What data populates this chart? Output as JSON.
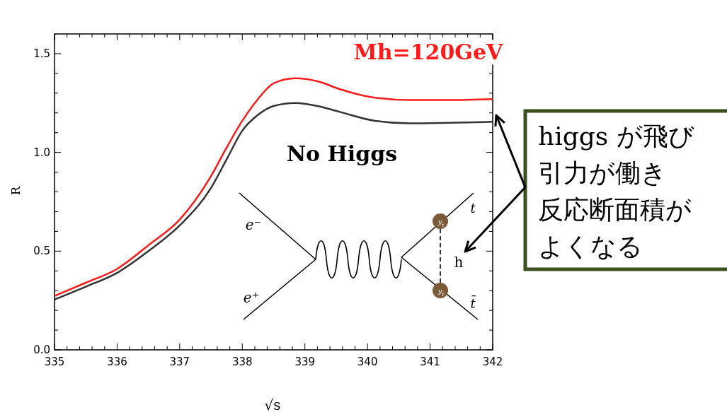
{
  "chart_data": {
    "type": "line",
    "xlabel": "√s",
    "ylabel": "R",
    "xlim": [
      335,
      342
    ],
    "ylim": [
      0,
      1.6
    ],
    "xticks": [
      335,
      {
        "value": 335.2,
        "label": null
      },
      {
        "value": 335.4,
        "label": null
      },
      {
        "value": 335.6,
        "label": null
      },
      {
        "value": 335.8,
        "label": null
      },
      336,
      {
        "value": 336.2,
        "label": null
      },
      {
        "value": 336.4,
        "label": null
      },
      {
        "value": 336.6,
        "label": null
      },
      {
        "value": 336.8,
        "label": null
      },
      337,
      {
        "value": 337.2,
        "label": null
      },
      {
        "value": 337.4,
        "label": null
      },
      {
        "value": 337.6,
        "label": null
      },
      {
        "value": 337.8,
        "label": null
      },
      338,
      {
        "value": 338.2,
        "label": null
      },
      {
        "value": 338.4,
        "label": null
      },
      {
        "value": 338.6,
        "label": null
      },
      {
        "value": 338.8,
        "label": null
      },
      339,
      {
        "value": 339.2,
        "label": null
      },
      {
        "value": 339.4,
        "label": null
      },
      {
        "value": 339.6,
        "label": null
      },
      {
        "value": 339.8,
        "label": null
      },
      340,
      {
        "value": 340.2,
        "label": null
      },
      {
        "value": 340.4,
        "label": null
      },
      {
        "value": 340.6,
        "label": null
      },
      {
        "value": 340.8,
        "label": null
      },
      341,
      {
        "value": 341.2,
        "label": null
      },
      {
        "value": 341.4,
        "label": null
      },
      {
        "value": 341.6,
        "label": null
      },
      {
        "value": 341.8,
        "label": null
      },
      342
    ],
    "yticks": [
      {
        "value": 0,
        "label": "0.0"
      },
      {
        "value": 0.1,
        "label": null
      },
      {
        "value": 0.2,
        "label": null
      },
      {
        "value": 0.3,
        "label": null
      },
      {
        "value": 0.4,
        "label": null
      },
      {
        "value": 0.5,
        "label": "0.5"
      },
      {
        "value": 0.6,
        "label": null
      },
      {
        "value": 0.7,
        "label": null
      },
      {
        "value": 0.8,
        "label": null
      },
      {
        "value": 0.9,
        "label": null
      },
      {
        "value": 1,
        "label": "1.0"
      },
      {
        "value": 1.1,
        "label": null
      },
      {
        "value": 1.2,
        "label": null
      },
      {
        "value": 1.3,
        "label": null
      },
      {
        "value": 1.4,
        "label": null
      },
      {
        "value": 1.5,
        "label": "1.5"
      }
    ],
    "x": [
      335,
      335.5,
      336,
      336.5,
      337,
      337.5,
      337.75,
      338,
      338.25,
      338.5,
      338.85,
      339.2,
      339.56,
      340.12,
      340.69,
      341.3,
      342
    ],
    "series": [
      {
        "name": "Mh=120GeV",
        "color": "#ff1a1a",
        "values": [
          0.273,
          0.34,
          0.41,
          0.53,
          0.66,
          0.88,
          1.025,
          1.16,
          1.27,
          1.35,
          1.375,
          1.36,
          1.32,
          1.277,
          1.265,
          1.265,
          1.27
        ]
      },
      {
        "name": "No Higgs",
        "color": "#333333",
        "values": [
          0.255,
          0.32,
          0.39,
          0.5,
          0.63,
          0.82,
          0.965,
          1.11,
          1.19,
          1.235,
          1.25,
          1.235,
          1.205,
          1.16,
          1.147,
          1.15,
          1.155
        ]
      }
    ],
    "grid": false,
    "legend": false,
    "marker": "none",
    "line_style": "solid",
    "annotations": [
      "higgs が飛び",
      "引力が働き",
      "反応断面積が",
      "よくなる",
      "e⁻",
      "e⁺",
      "t",
      "t̄",
      "h",
      "y$_{t}$",
      "y$_{t}$"
    ]
  }
}
